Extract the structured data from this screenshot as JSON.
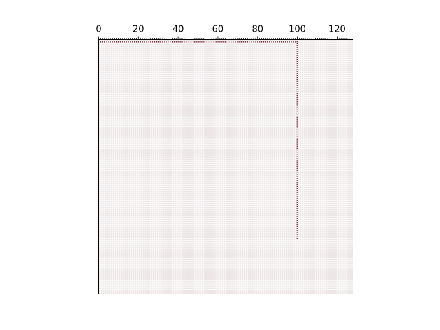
{
  "chart_data": {
    "type": "heatmap",
    "title": "",
    "xlabel": "",
    "ylabel": "",
    "x_tick_position": "top",
    "x_ticks": [
      "0",
      "20",
      "40",
      "60",
      "80",
      "100",
      "120"
    ],
    "xlim": [
      0,
      128
    ],
    "ylim": [
      0,
      128
    ],
    "y_axis_inverted": true,
    "y_ticks_visible": false,
    "grid": true,
    "background_color": "#ece6e6",
    "grid_color": "#ffffff",
    "mark_color": "#7a2e3a",
    "series": [
      {
        "orientation": "horizontal",
        "row": 1,
        "from_col": 1,
        "to_col": 100
      },
      {
        "orientation": "vertical",
        "col": 100,
        "from_row": 1,
        "to_row": 100
      }
    ]
  }
}
